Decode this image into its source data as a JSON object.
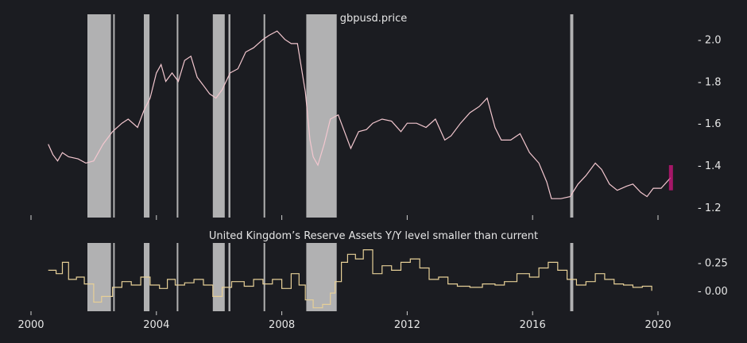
{
  "chart_data": [
    {
      "type": "line",
      "title": "gbpusd.price",
      "ylim": [
        1.15,
        2.12
      ],
      "yticks": [
        1.2,
        1.4,
        1.6,
        1.8,
        2.0
      ],
      "ytick_labels": [
        "- 1.2",
        "- 1.4",
        "- 1.6",
        "- 1.8",
        "- 2.0"
      ],
      "line_color": "#f3c7cf",
      "grid": false,
      "series": [
        {
          "x": [
            2000.55,
            2000.7,
            2000.85,
            2001.0,
            2001.2,
            2001.5,
            2001.75,
            2002.0,
            2002.3,
            2002.6,
            2002.9,
            2003.1,
            2003.4,
            2003.6,
            2003.8,
            2004.0,
            2004.15,
            2004.3,
            2004.5,
            2004.7,
            2004.9,
            2005.1,
            2005.3,
            2005.5,
            2005.7,
            2005.9,
            2006.1,
            2006.35,
            2006.6,
            2006.85,
            2007.1,
            2007.4,
            2007.6,
            2007.85,
            2008.1,
            2008.3,
            2008.5,
            2008.75,
            2008.9,
            2009.0,
            2009.15,
            2009.35,
            2009.55,
            2009.8,
            2010.0,
            2010.2,
            2010.45,
            2010.7,
            2010.9,
            2011.2,
            2011.5,
            2011.8,
            2012.0,
            2012.3,
            2012.6,
            2012.9,
            2013.2,
            2013.4,
            2013.7,
            2014.0,
            2014.3,
            2014.55,
            2014.8,
            2015.0,
            2015.3,
            2015.6,
            2015.9,
            2016.2,
            2016.45,
            2016.6,
            2016.9,
            2017.2,
            2017.45,
            2017.7,
            2018.0,
            2018.2,
            2018.45,
            2018.7,
            2019.0,
            2019.2,
            2019.45,
            2019.65,
            2019.85,
            2020.1,
            2020.4
          ],
          "values": [
            1.5,
            1.45,
            1.42,
            1.46,
            1.44,
            1.43,
            1.41,
            1.42,
            1.5,
            1.56,
            1.6,
            1.62,
            1.58,
            1.66,
            1.72,
            1.84,
            1.88,
            1.8,
            1.84,
            1.8,
            1.9,
            1.92,
            1.82,
            1.78,
            1.74,
            1.72,
            1.76,
            1.84,
            1.86,
            1.94,
            1.96,
            2.0,
            2.02,
            2.04,
            2.0,
            1.98,
            1.98,
            1.75,
            1.52,
            1.44,
            1.4,
            1.5,
            1.62,
            1.64,
            1.56,
            1.48,
            1.56,
            1.57,
            1.6,
            1.62,
            1.61,
            1.56,
            1.6,
            1.6,
            1.58,
            1.62,
            1.52,
            1.54,
            1.6,
            1.65,
            1.68,
            1.72,
            1.58,
            1.52,
            1.52,
            1.55,
            1.46,
            1.41,
            1.32,
            1.24,
            1.24,
            1.25,
            1.31,
            1.35,
            1.41,
            1.38,
            1.31,
            1.28,
            1.3,
            1.31,
            1.27,
            1.25,
            1.29,
            1.29,
            1.34
          ]
        }
      ],
      "highlight_range": [
        1.28,
        1.4
      ],
      "highlight_color": "#d4147f"
    },
    {
      "type": "line",
      "title": "United Kingdom’s Reserve Assets Y/Y level smaller than current",
      "ylim": [
        -0.18,
        0.42
      ],
      "yticks": [
        0.0,
        0.25
      ],
      "ytick_labels": [
        "- 0.00",
        "- 0.25"
      ],
      "line_color": "#e6cf97",
      "grid": false,
      "series": [
        {
          "x": [
            2000.55,
            2000.8,
            2001.0,
            2001.2,
            2001.45,
            2001.7,
            2002.0,
            2002.25,
            2002.6,
            2002.9,
            2003.2,
            2003.5,
            2003.8,
            2004.1,
            2004.35,
            2004.6,
            2004.9,
            2005.2,
            2005.5,
            2005.8,
            2006.1,
            2006.4,
            2006.8,
            2007.1,
            2007.4,
            2007.7,
            2008.0,
            2008.3,
            2008.55,
            2008.75,
            2009.0,
            2009.3,
            2009.55,
            2009.7,
            2009.9,
            2010.1,
            2010.35,
            2010.6,
            2010.9,
            2011.2,
            2011.5,
            2011.8,
            2012.1,
            2012.4,
            2012.7,
            2013.0,
            2013.3,
            2013.6,
            2014.0,
            2014.4,
            2014.8,
            2015.1,
            2015.5,
            2015.9,
            2016.2,
            2016.5,
            2016.8,
            2017.1,
            2017.4,
            2017.7,
            2018.0,
            2018.3,
            2018.6,
            2018.9,
            2019.2,
            2019.5,
            2019.8
          ],
          "values": [
            0.18,
            0.15,
            0.25,
            0.1,
            0.12,
            0.06,
            -0.1,
            -0.05,
            0.03,
            0.08,
            0.05,
            0.12,
            0.05,
            0.02,
            0.1,
            0.05,
            0.07,
            0.1,
            0.05,
            -0.05,
            0.03,
            0.08,
            0.04,
            0.1,
            0.06,
            0.1,
            0.02,
            0.15,
            0.05,
            -0.08,
            -0.15,
            -0.12,
            -0.02,
            0.08,
            0.25,
            0.32,
            0.28,
            0.36,
            0.15,
            0.22,
            0.18,
            0.25,
            0.28,
            0.2,
            0.1,
            0.12,
            0.06,
            0.04,
            0.03,
            0.06,
            0.05,
            0.08,
            0.15,
            0.12,
            0.2,
            0.25,
            0.18,
            0.1,
            0.05,
            0.08,
            0.15,
            0.1,
            0.06,
            0.05,
            0.03,
            0.04,
            0.0
          ]
        }
      ]
    }
  ],
  "x_axis": {
    "range": [
      1999.7,
      2020.7
    ],
    "ticks": [
      2000,
      2004,
      2008,
      2012,
      2016,
      2020
    ],
    "labels": [
      "2000",
      "2004",
      "2008",
      "2012",
      "2016",
      "2020"
    ]
  },
  "shaded_periods": {
    "color": "#c6c6c6",
    "ranges": [
      [
        2001.8,
        2002.55
      ],
      [
        2002.62,
        2002.67
      ],
      [
        2003.6,
        2003.78
      ],
      [
        2004.65,
        2004.7
      ],
      [
        2005.8,
        2006.18
      ],
      [
        2006.3,
        2006.36
      ],
      [
        2007.42,
        2007.47
      ],
      [
        2008.78,
        2009.75
      ],
      [
        2017.2,
        2017.3
      ]
    ]
  },
  "colors": {
    "background": "#1b1c21",
    "shade": "#c6c6c6"
  }
}
